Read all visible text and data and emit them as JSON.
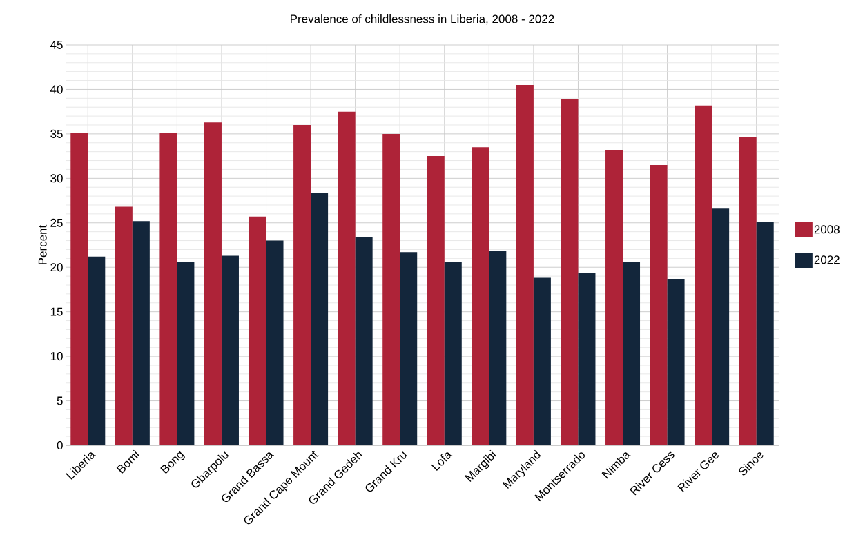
{
  "chart_data": {
    "type": "bar",
    "title": "Prevalence of childlessness in Liberia, 2008 - 2022",
    "ylabel": "Percent",
    "categories": [
      "Liberia",
      "Bomi",
      "Bong",
      "Gbarpolu",
      "Grand Bassa",
      "Grand Cape Mount",
      "Grand Gedeh",
      "Grand Kru",
      "Lofa",
      "Margibi",
      "Maryland",
      "Montserrado",
      "Nimba",
      "River Cess",
      "River Gee",
      "Sinoe"
    ],
    "series": [
      {
        "name": "2008",
        "color": "#ae2338",
        "values": [
          35.1,
          26.8,
          35.1,
          36.3,
          25.7,
          36.0,
          37.5,
          35.0,
          32.5,
          33.5,
          40.5,
          38.9,
          33.2,
          31.5,
          38.2,
          34.6
        ]
      },
      {
        "name": "2022",
        "color": "#13263b",
        "values": [
          21.2,
          25.2,
          20.6,
          21.3,
          23.0,
          28.4,
          23.4,
          21.7,
          20.6,
          21.8,
          18.9,
          19.4,
          20.6,
          18.7,
          26.6,
          25.1
        ]
      }
    ],
    "ylim": [
      0,
      45
    ],
    "yticks": [
      0,
      5,
      10,
      15,
      20,
      25,
      30,
      35,
      40,
      45
    ],
    "grid": true,
    "legend": "right"
  }
}
